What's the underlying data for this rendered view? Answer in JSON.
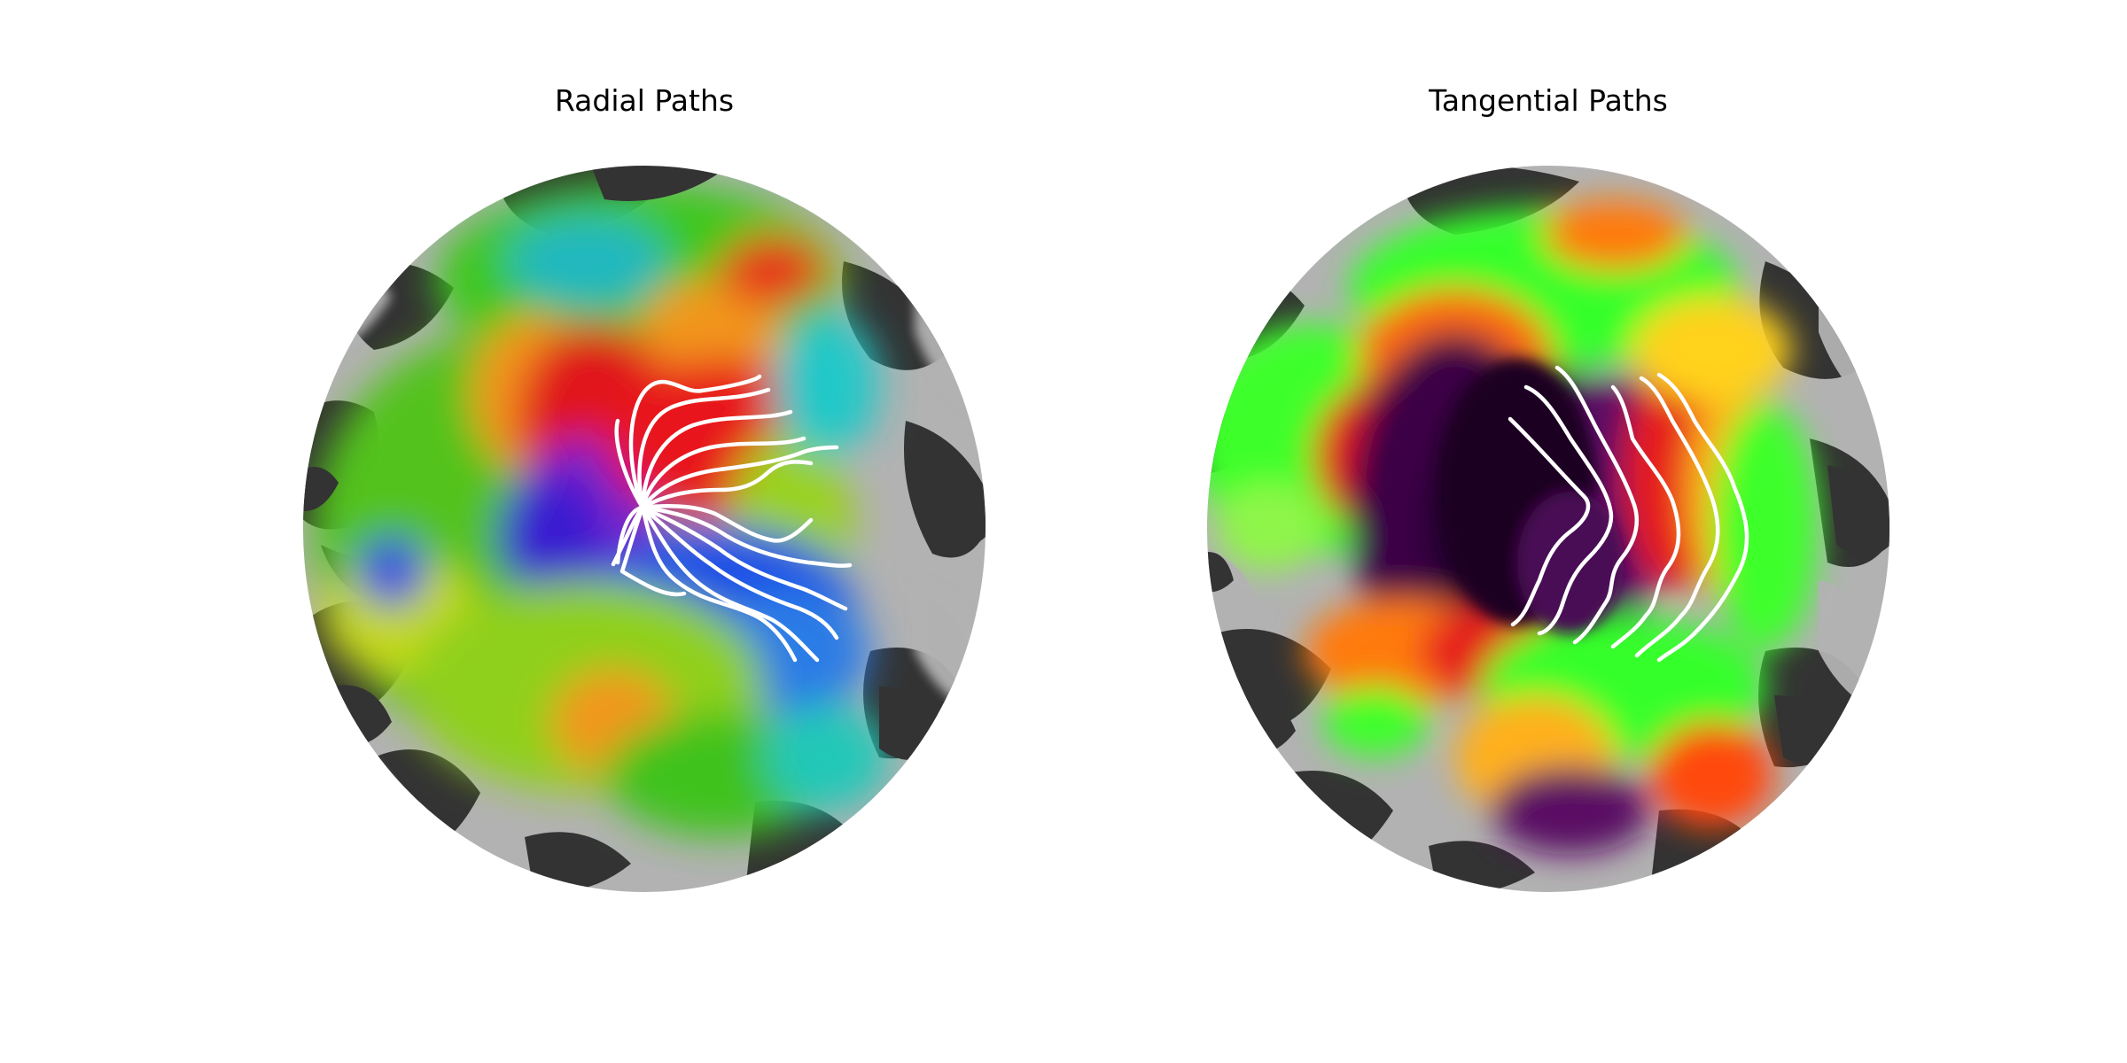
{
  "panels": [
    {
      "title": "Radial Paths",
      "map": "retinotopic polar-angle map on flattened cortex",
      "path_style": "radial",
      "path_color": "#ffffff",
      "palette": [
        "#2a1fd6",
        "#7a20c8",
        "#e0141a",
        "#f2961c",
        "#d8e01a",
        "#3fc21e",
        "#22b8b0",
        "#1f6ae6"
      ]
    },
    {
      "title": "Tangential Paths",
      "map": "retinotopic eccentricity map on flattened cortex",
      "path_style": "tangential",
      "path_color": "#ffffff",
      "palette": [
        "#24002e",
        "#5a0a63",
        "#e61c1c",
        "#ff7a10",
        "#ffd21a",
        "#36ff2a",
        "#8ff54a"
      ]
    }
  ],
  "background": {
    "curvature_light": "#b2b2b2",
    "curvature_dark": "#333333"
  }
}
